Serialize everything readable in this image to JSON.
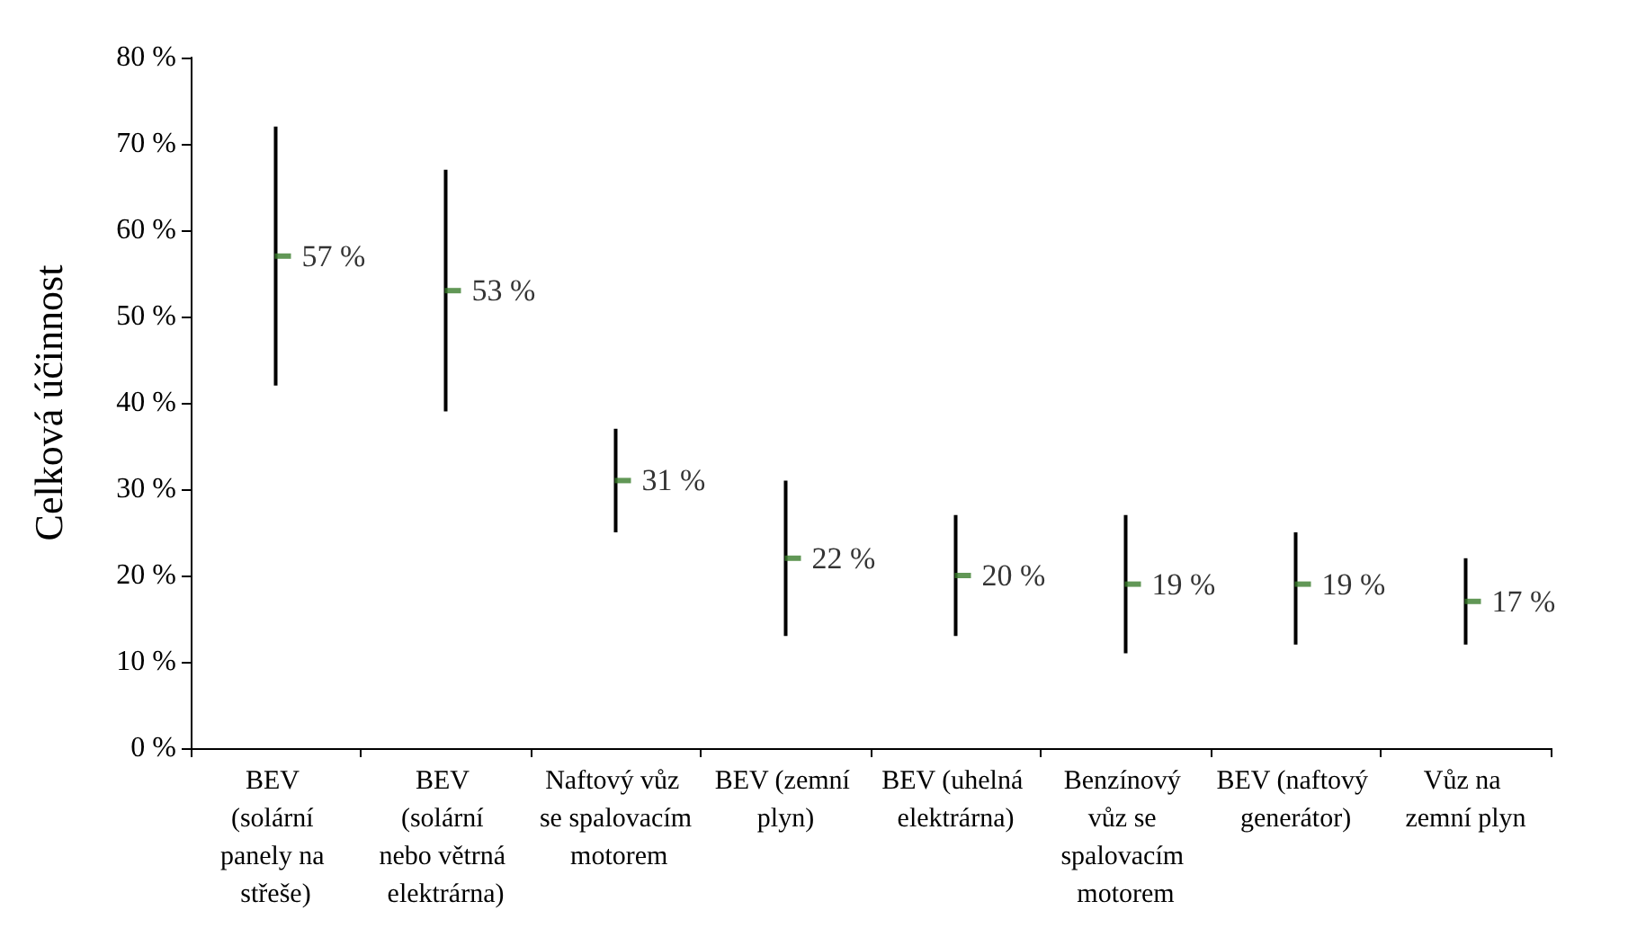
{
  "chart_data": {
    "type": "scatter",
    "ylabel": "Celková účinnost",
    "categories": [
      "BEV (solární panely na střeše)",
      "BEV (solární nebo větrná elektrárna)",
      "Naftový vůz se spalovacím motorem",
      "BEV (zemní plyn)",
      "BEV (uhelná elektrárna)",
      "Benzínový vůz se spalovacím motorem",
      "BEV (naftový generátor)",
      "Vůz na zemní plyn"
    ],
    "values": [
      57,
      53,
      31,
      22,
      20,
      19,
      19,
      17
    ],
    "errors": [
      [
        42,
        72
      ],
      [
        39,
        67
      ],
      [
        25,
        37
      ],
      [
        13,
        31
      ],
      [
        13,
        27
      ],
      [
        11,
        27
      ],
      [
        12,
        25
      ],
      [
        12,
        22
      ]
    ],
    "value_labels": [
      "57 %",
      "53 %",
      "31 %",
      "22 %",
      "20 %",
      "19 %",
      "19 %",
      "17 %"
    ],
    "color": "#3a7d2c",
    "ylim": [
      0,
      80
    ],
    "yticks": [
      {
        "value": 0,
        "label": "0 %"
      },
      {
        "value": 10,
        "label": "10 %"
      },
      {
        "value": 20,
        "label": "20 %"
      },
      {
        "value": 30,
        "label": "30 %"
      },
      {
        "value": 40,
        "label": "40 %"
      },
      {
        "value": 50,
        "label": "50 %"
      },
      {
        "value": 60,
        "label": "60 %"
      },
      {
        "value": 70,
        "label": "70 %"
      },
      {
        "value": 80,
        "label": "80 %"
      }
    ],
    "grid": false
  }
}
